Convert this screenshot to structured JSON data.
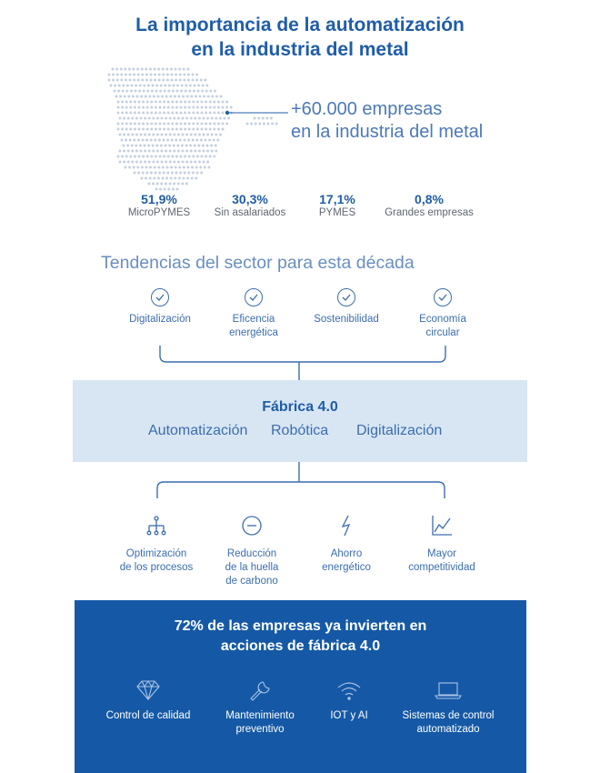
{
  "header": {
    "title_line1": "La importancia de la automatización",
    "title_line2": "en la industria del metal"
  },
  "companies": {
    "count_line1": "+60.000 empresas",
    "count_line2": "en la industria del metal"
  },
  "stats": [
    {
      "value": "51,9%",
      "label": "MicroPYMES"
    },
    {
      "value": "30,3%",
      "label": "Sin asalariados"
    },
    {
      "value": "17,1%",
      "label": "PYMES"
    },
    {
      "value": "0,8%",
      "label": "Grandes empresas"
    }
  ],
  "trends": {
    "title": "Tendencias del sector para esta década",
    "items": [
      {
        "line1": "Digitalización",
        "line2": ""
      },
      {
        "line1": "Eficencia",
        "line2": "energética"
      },
      {
        "line1": "Sostenibilidad",
        "line2": ""
      },
      {
        "line1": "Economía",
        "line2": "circular"
      }
    ]
  },
  "fabrica": {
    "title": "Fábrica 4.0",
    "items": [
      "Automatización",
      "Robótica",
      "Digitalización"
    ]
  },
  "benefits": [
    {
      "icon": "hierarchy-icon",
      "line1": "Optimización",
      "line2": "de los procesos",
      "line3": ""
    },
    {
      "icon": "minus-circle-icon",
      "line1": "Reducción",
      "line2": "de la huella",
      "line3": "de carbono"
    },
    {
      "icon": "lightning-icon",
      "line1": "Ahorro",
      "line2": "energético",
      "line3": ""
    },
    {
      "icon": "growth-chart-icon",
      "line1": "Mayor",
      "line2": "competitividad",
      "line3": ""
    }
  ],
  "investment": {
    "title_line1": "72% de las empresas ya invierten en",
    "title_line2": "acciones de fábrica 4.0",
    "actions": [
      {
        "icon": "diamond-icon",
        "line1": "Control de calidad",
        "line2": ""
      },
      {
        "icon": "wrench-icon",
        "line1": "Mantenimiento",
        "line2": "preventivo"
      },
      {
        "icon": "wifi-icon",
        "line1": "IOT y AI",
        "line2": ""
      },
      {
        "icon": "laptop-icon",
        "line1": "Sistemas de control",
        "line2": "automatizado"
      }
    ]
  },
  "colors": {
    "primary": "#1f5da8",
    "light_panel": "#d8e6f3",
    "dark_panel": "#1559a6",
    "map_dots": "#c5d1df"
  }
}
